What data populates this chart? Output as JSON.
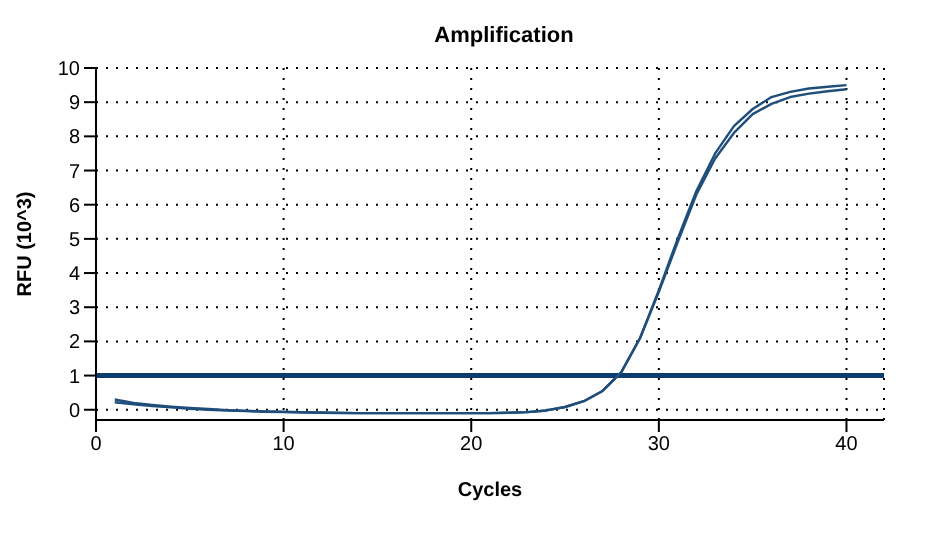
{
  "chart_data": {
    "type": "line",
    "title": "Amplification",
    "xlabel": "Cycles",
    "ylabel": "RFU (10^3)",
    "x": [
      1,
      2,
      3,
      4,
      5,
      6,
      7,
      8,
      9,
      10,
      11,
      12,
      13,
      14,
      15,
      16,
      17,
      18,
      19,
      20,
      21,
      22,
      23,
      24,
      25,
      26,
      27,
      28,
      29,
      30,
      31,
      32,
      33,
      34,
      35,
      36,
      37,
      38,
      39,
      40
    ],
    "series": [
      {
        "color": "#1f4e7a",
        "values": [
          0.3,
          0.2,
          0.14,
          0.09,
          0.05,
          0.02,
          -0.01,
          -0.03,
          -0.05,
          -0.06,
          -0.07,
          -0.08,
          -0.09,
          -0.1,
          -0.1,
          -0.1,
          -0.1,
          -0.1,
          -0.1,
          -0.1,
          -0.1,
          -0.09,
          -0.07,
          -0.02,
          0.08,
          0.25,
          0.55,
          1.1,
          2.1,
          3.5,
          5.0,
          6.4,
          7.5,
          8.3,
          8.8,
          9.15,
          9.3,
          9.4,
          9.45,
          9.5
        ]
      },
      {
        "color": "#1f4e7a",
        "values": [
          0.22,
          0.16,
          0.11,
          0.07,
          0.03,
          0.0,
          -0.02,
          -0.04,
          -0.06,
          -0.07,
          -0.08,
          -0.09,
          -0.1,
          -0.1,
          -0.1,
          -0.1,
          -0.1,
          -0.1,
          -0.1,
          -0.1,
          -0.1,
          -0.09,
          -0.07,
          -0.02,
          0.08,
          0.25,
          0.55,
          1.1,
          2.1,
          3.45,
          4.9,
          6.3,
          7.35,
          8.1,
          8.65,
          8.95,
          9.15,
          9.25,
          9.32,
          9.38
        ]
      }
    ],
    "ref_lines": [
      {
        "axis": "y",
        "value": 1,
        "color": "#0b3c6e"
      }
    ],
    "xlim": [
      0,
      42
    ],
    "xticks": [
      0,
      10,
      20,
      30,
      40
    ],
    "ylim": [
      -0.3,
      10
    ],
    "yticks": [
      0,
      1,
      2,
      3,
      4,
      5,
      6,
      7,
      8,
      9,
      10
    ],
    "grid": true,
    "marker": "none",
    "line_style": "solid"
  }
}
